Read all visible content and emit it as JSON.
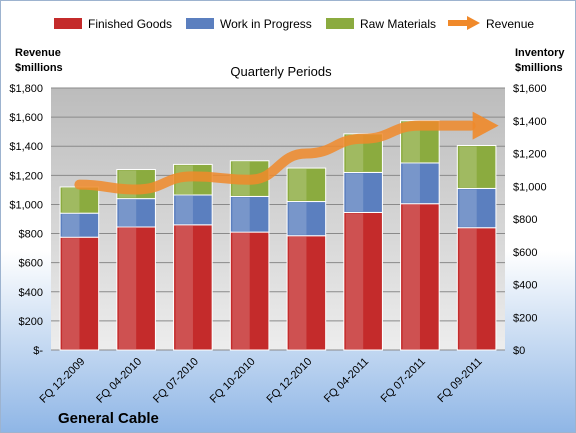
{
  "chart_data": {
    "type": "bar",
    "stacked": true,
    "title": "Quarterly Periods",
    "company": "General Cable",
    "categories": [
      "FQ 12-2009",
      "FQ 04-2010",
      "FQ 07-2010",
      "FQ 10-2010",
      "FQ 12-2010",
      "FQ 04-2011",
      "FQ 07-2011",
      "FQ 09-2011"
    ],
    "series": [
      {
        "name": "Finished Goods",
        "axis": "left",
        "color": "#c42b2b",
        "values": [
          775,
          845,
          860,
          810,
          785,
          945,
          1005,
          840
        ]
      },
      {
        "name": "Work in Progress",
        "axis": "left",
        "color": "#5b7fbf",
        "values": [
          165,
          195,
          205,
          245,
          235,
          275,
          280,
          270
        ]
      },
      {
        "name": "Raw Materials",
        "axis": "left",
        "color": "#8bab3f",
        "values": [
          180,
          200,
          210,
          245,
          230,
          265,
          290,
          295
        ]
      }
    ],
    "line_series": {
      "name": "Revenue",
      "axis": "right",
      "color": "#f0892a",
      "values": [
        1010,
        980,
        1060,
        1040,
        1200,
        1290,
        1370,
        1370
      ]
    },
    "left_axis": {
      "title_line1": "Revenue",
      "title_line2": "$millions",
      "ylim": [
        0,
        1800
      ],
      "ticks": [
        "$-",
        "$200",
        "$400",
        "$600",
        "$800",
        "$1,000",
        "$1,200",
        "$1,400",
        "$1,600",
        "$1,800"
      ]
    },
    "right_axis": {
      "title_line1": "Inventory",
      "title_line2": "$millions",
      "ylim": [
        0,
        1600
      ],
      "ticks": [
        "$0",
        "$200",
        "$400",
        "$600",
        "$800",
        "$1,000",
        "$1,200",
        "$1,400",
        "$1,600"
      ]
    },
    "legend_position": "top",
    "grid": true
  }
}
